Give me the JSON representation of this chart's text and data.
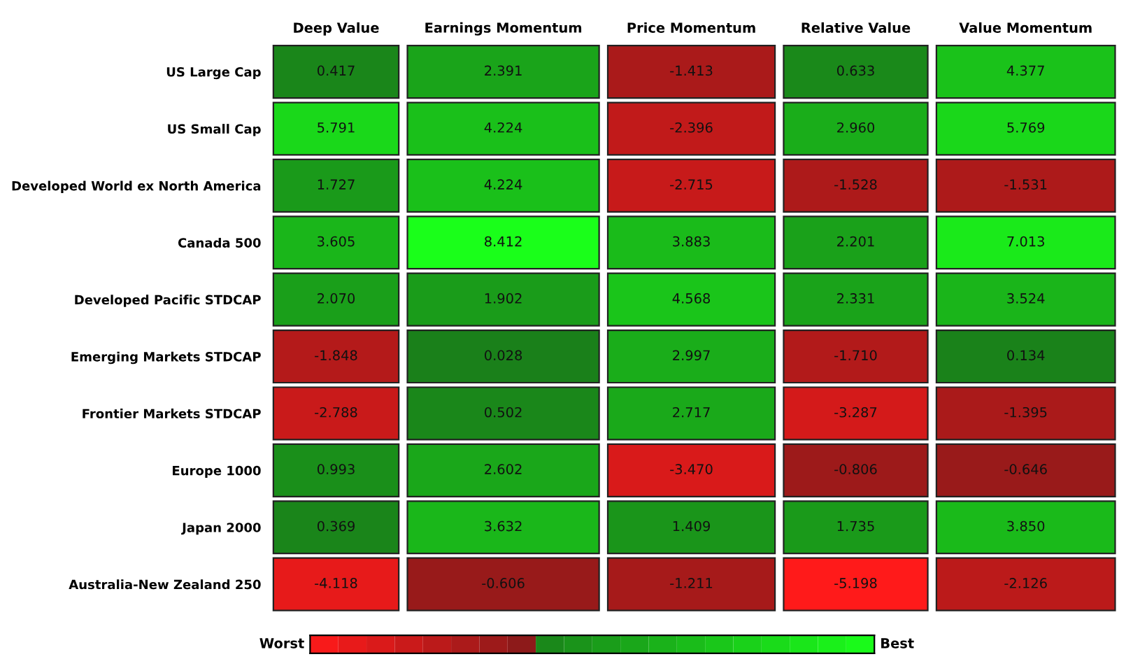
{
  "chart_data": {
    "type": "heatmap",
    "categories": [
      "Deep Value",
      "Earnings Momentum",
      "Price Momentum",
      "Relative Value",
      "Value Momentum"
    ],
    "y_categories": [
      "US Large Cap",
      "US Small Cap",
      "Developed World ex North America",
      "Canada 500",
      "Developed Pacific STDCAP",
      "Emerging Markets STDCAP",
      "Frontier Markets STDCAP",
      "Europe 1000",
      "Japan 2000",
      "Australia-New Zealand 250"
    ],
    "cells": [
      [
        0.417,
        2.391,
        -1.413,
        0.633,
        4.377
      ],
      [
        5.791,
        4.224,
        -2.396,
        2.96,
        5.769
      ],
      [
        1.727,
        4.224,
        -2.715,
        -1.528,
        -1.531
      ],
      [
        3.605,
        8.412,
        3.883,
        2.201,
        7.013
      ],
      [
        2.07,
        1.902,
        4.568,
        2.331,
        3.524
      ],
      [
        -1.848,
        0.028,
        2.997,
        -1.71,
        0.134
      ],
      [
        -2.788,
        0.502,
        2.717,
        -3.287,
        -1.395
      ],
      [
        0.993,
        2.602,
        -3.47,
        -0.806,
        -0.646
      ],
      [
        0.369,
        3.632,
        1.409,
        1.735,
        3.85
      ],
      [
        -4.118,
        -0.606,
        -1.211,
        -5.198,
        -2.126
      ]
    ],
    "cell_labels": [
      [
        "0.417",
        "2.391",
        "-1.413",
        "0.633",
        "4.377"
      ],
      [
        "5.791",
        "4.224",
        "-2.396",
        "2.960",
        "5.769"
      ],
      [
        "1.727",
        "4.224",
        "-2.715",
        "-1.528",
        "-1.531"
      ],
      [
        "3.605",
        "8.412",
        "3.883",
        "2.201",
        "7.013"
      ],
      [
        "2.070",
        "1.902",
        "4.568",
        "2.331",
        "3.524"
      ],
      [
        "-1.848",
        "0.028",
        "2.997",
        "-1.710",
        "0.134"
      ],
      [
        "-2.788",
        "0.502",
        "2.717",
        "-3.287",
        "-1.395"
      ],
      [
        "0.993",
        "2.602",
        "-3.470",
        "-0.806",
        "-0.646"
      ],
      [
        "0.369",
        "3.632",
        "1.409",
        "1.735",
        "3.850"
      ],
      [
        "-4.118",
        "-0.606",
        "-1.211",
        "-5.198",
        "-2.126"
      ]
    ],
    "annotations": [
      "Worst",
      "Best"
    ]
  }
}
